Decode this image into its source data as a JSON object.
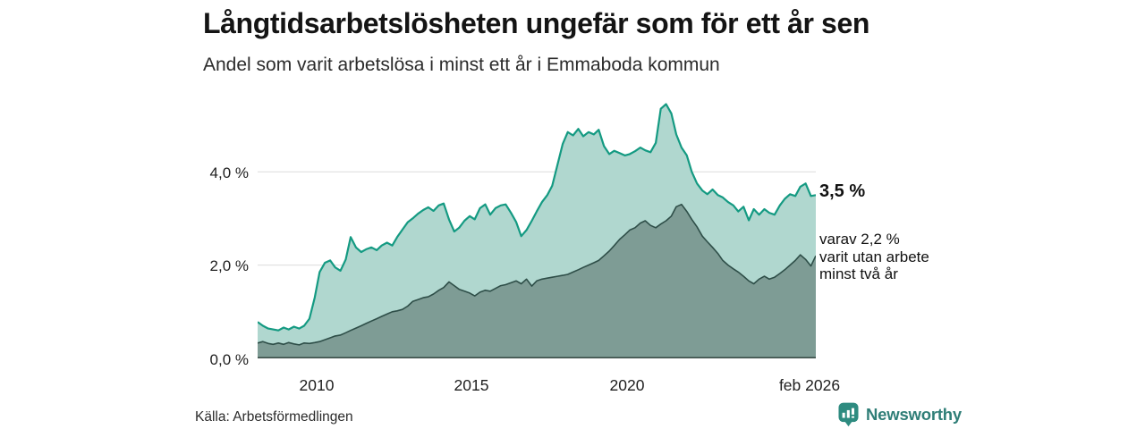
{
  "header": {
    "title": "Långtidsarbetslösheten ungefär som för ett år sen",
    "subtitle": "Andel som varit arbetslösa i minst ett år i Emmaboda kommun"
  },
  "annotations": {
    "total_end_label": "3,5 %",
    "secondary_lines": [
      "varav 2,2 %",
      "varit utan arbete",
      "minst två år"
    ]
  },
  "footer": {
    "source": "Källa: Arbetsförmedlingen",
    "brand": "Newsworthy",
    "brand_icon": "bar-chart-speech-bubble-icon"
  },
  "colors": {
    "total_fill": "#b0d7cf",
    "total_line": "#149a82",
    "two_year_fill": "#7e9c95",
    "two_year_line": "#2e4e48",
    "grid": "#dcdcdc",
    "baseline": "#3d4f4a",
    "brand_teal": "#2e8b80"
  },
  "chart_data": {
    "type": "area",
    "title": "Långtidsarbetslösheten ungefär som för ett år sen",
    "subtitle": "Andel som varit arbetslösa i minst ett år i Emmaboda kommun",
    "unit": "%",
    "xlim": [
      2008.08,
      2026.08
    ],
    "ylim": [
      0,
      5.9
    ],
    "grid": "horizontal",
    "yticks": [
      {
        "value": 0,
        "label": "0,0 %"
      },
      {
        "value": 2,
        "label": "2,0 %"
      },
      {
        "value": 4,
        "label": "4,0 %"
      }
    ],
    "xticks": [
      {
        "value": 2010,
        "label": "2010"
      },
      {
        "value": 2015,
        "label": "2015"
      },
      {
        "value": 2020,
        "label": "2020"
      },
      {
        "value": 2026.08,
        "label": "feb 2026"
      }
    ],
    "end_values": {
      "total": 3.5,
      "two_year": 2.2
    },
    "x": [
      2008.08,
      2008.25,
      2008.42,
      2008.58,
      2008.75,
      2008.92,
      2009.08,
      2009.25,
      2009.42,
      2009.58,
      2009.75,
      2009.92,
      2010.08,
      2010.25,
      2010.42,
      2010.58,
      2010.75,
      2010.92,
      2011.08,
      2011.25,
      2011.42,
      2011.58,
      2011.75,
      2011.92,
      2012.08,
      2012.25,
      2012.42,
      2012.58,
      2012.75,
      2012.92,
      2013.08,
      2013.25,
      2013.42,
      2013.58,
      2013.75,
      2013.92,
      2014.08,
      2014.25,
      2014.42,
      2014.58,
      2014.75,
      2014.92,
      2015.08,
      2015.25,
      2015.42,
      2015.58,
      2015.75,
      2015.92,
      2016.08,
      2016.25,
      2016.42,
      2016.58,
      2016.75,
      2016.92,
      2017.08,
      2017.25,
      2017.42,
      2017.58,
      2017.75,
      2017.92,
      2018.08,
      2018.25,
      2018.42,
      2018.58,
      2018.75,
      2018.92,
      2019.08,
      2019.25,
      2019.42,
      2019.58,
      2019.75,
      2019.92,
      2020.08,
      2020.25,
      2020.42,
      2020.58,
      2020.75,
      2020.92,
      2021.08,
      2021.25,
      2021.42,
      2021.58,
      2021.75,
      2021.92,
      2022.08,
      2022.25,
      2022.42,
      2022.58,
      2022.75,
      2022.92,
      2023.08,
      2023.25,
      2023.42,
      2023.58,
      2023.75,
      2023.92,
      2024.08,
      2024.25,
      2024.42,
      2024.58,
      2024.75,
      2024.92,
      2025.08,
      2025.25,
      2025.42,
      2025.58,
      2025.75,
      2025.92,
      2026.08
    ],
    "series": [
      {
        "name": "Andel arbetslösa minst ett år",
        "fill": "#b0d7cf",
        "stroke": "#149a82",
        "stroke_width": 2.2,
        "values": [
          0.78,
          0.7,
          0.64,
          0.62,
          0.6,
          0.66,
          0.62,
          0.68,
          0.64,
          0.7,
          0.85,
          1.3,
          1.85,
          2.05,
          2.1,
          1.95,
          1.88,
          2.12,
          2.6,
          2.38,
          2.28,
          2.34,
          2.38,
          2.32,
          2.42,
          2.48,
          2.42,
          2.6,
          2.76,
          2.92,
          3.0,
          3.1,
          3.18,
          3.24,
          3.16,
          3.28,
          3.32,
          2.98,
          2.72,
          2.8,
          2.95,
          3.05,
          2.98,
          3.22,
          3.3,
          3.08,
          3.22,
          3.28,
          3.3,
          3.12,
          2.92,
          2.62,
          2.75,
          2.95,
          3.15,
          3.35,
          3.5,
          3.7,
          4.15,
          4.6,
          4.85,
          4.78,
          4.92,
          4.76,
          4.85,
          4.8,
          4.9,
          4.55,
          4.38,
          4.45,
          4.4,
          4.35,
          4.38,
          4.44,
          4.52,
          4.46,
          4.42,
          4.62,
          5.35,
          5.45,
          5.25,
          4.8,
          4.52,
          4.35,
          4.0,
          3.75,
          3.6,
          3.52,
          3.62,
          3.5,
          3.45,
          3.35,
          3.28,
          3.15,
          3.25,
          2.96,
          3.2,
          3.08,
          3.2,
          3.12,
          3.08,
          3.28,
          3.42,
          3.52,
          3.48,
          3.68,
          3.75,
          3.48,
          3.5
        ]
      },
      {
        "name": "varav utan arbete minst två år",
        "fill": "#7e9c95",
        "stroke": "#2e4e48",
        "stroke_width": 1.6,
        "values": [
          0.33,
          0.36,
          0.32,
          0.3,
          0.33,
          0.3,
          0.34,
          0.31,
          0.29,
          0.33,
          0.32,
          0.34,
          0.36,
          0.4,
          0.44,
          0.48,
          0.5,
          0.55,
          0.6,
          0.65,
          0.7,
          0.75,
          0.8,
          0.85,
          0.9,
          0.95,
          1.0,
          1.02,
          1.05,
          1.12,
          1.22,
          1.26,
          1.3,
          1.32,
          1.38,
          1.46,
          1.52,
          1.64,
          1.56,
          1.48,
          1.44,
          1.4,
          1.34,
          1.42,
          1.46,
          1.44,
          1.5,
          1.56,
          1.58,
          1.62,
          1.66,
          1.6,
          1.7,
          1.55,
          1.66,
          1.7,
          1.72,
          1.74,
          1.76,
          1.78,
          1.8,
          1.85,
          1.9,
          1.95,
          2.0,
          2.05,
          2.1,
          2.2,
          2.3,
          2.42,
          2.55,
          2.65,
          2.75,
          2.8,
          2.9,
          2.95,
          2.85,
          2.8,
          2.88,
          2.95,
          3.05,
          3.25,
          3.3,
          3.15,
          2.98,
          2.82,
          2.62,
          2.5,
          2.38,
          2.25,
          2.1,
          2.0,
          1.92,
          1.85,
          1.76,
          1.66,
          1.6,
          1.7,
          1.76,
          1.7,
          1.74,
          1.82,
          1.9,
          2.0,
          2.1,
          2.22,
          2.12,
          1.98,
          2.2
        ]
      }
    ]
  }
}
